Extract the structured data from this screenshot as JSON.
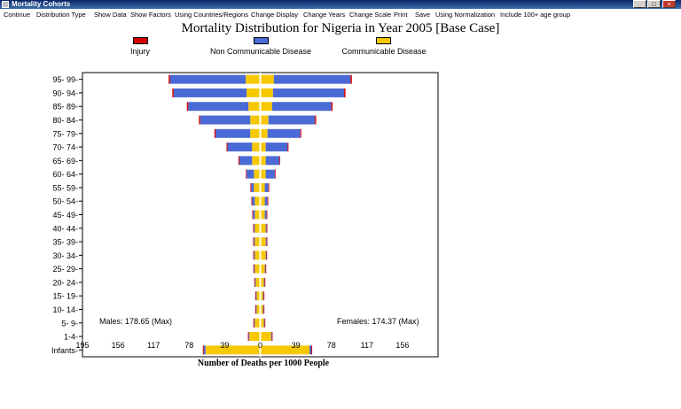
{
  "window": {
    "title": "Mortality Cohorts",
    "controls": [
      "_",
      "□",
      "×"
    ]
  },
  "menu": [
    "Continue",
    "Distribution Type",
    "Show Data",
    "Show Factors",
    "Using Countries/Regions",
    "Change Display",
    "Change Years",
    "Change Scale",
    "Print",
    "Save",
    "Using Normalization",
    "Include 100+ age group"
  ],
  "chart_data": {
    "type": "bar",
    "orientation": "population-pyramid",
    "title": "Mortality Distribution for Nigeria in Year  2005 [Base Case]",
    "xlabel": "Number of Deaths per 1000 People",
    "ylabel": "",
    "xlim": [
      -195,
      195
    ],
    "x_ticks_left": [
      "195",
      "156",
      "117",
      "78",
      "39"
    ],
    "x_tick_center": "0",
    "x_ticks_right": [
      "39",
      "78",
      "117",
      "156"
    ],
    "legend_position": "top",
    "legend": [
      {
        "name": "Injury",
        "color": "#d40000"
      },
      {
        "name": "Non Communicable Disease",
        "color": "#4a6ad6"
      },
      {
        "name": "Communicable Disease",
        "color": "#f7c800"
      }
    ],
    "categories": [
      "95- 99-",
      "90- 94-",
      "85- 89-",
      "80- 84-",
      "75- 79-",
      "70- 74-",
      "65- 69-",
      "60- 64-",
      "55- 59-",
      "50- 54-",
      "45- 49-",
      "40- 44-",
      "35- 39-",
      "30- 34-",
      "25- 29-",
      "20- 24-",
      "15- 19-",
      "10- 14-",
      "5- 9-",
      "1-4-",
      "Infants-"
    ],
    "males": {
      "injury": [
        1.5,
        1.5,
        1.5,
        1.3,
        1.3,
        1.0,
        1.0,
        0.8,
        0.8,
        0.7,
        0.7,
        0.7,
        0.7,
        0.7,
        0.7,
        0.7,
        0.5,
        0.3,
        0.8,
        0.3,
        1.0
      ],
      "noncommunicable": [
        83,
        80,
        66,
        55,
        38,
        27,
        14,
        8,
        3,
        3,
        2,
        1,
        1,
        1,
        0.5,
        0.3,
        0.3,
        0.3,
        0.4,
        0.3,
        2
      ],
      "communicable": [
        15,
        14,
        12,
        10,
        10,
        8,
        8,
        6,
        6,
        5,
        5,
        5,
        5,
        5,
        5,
        4,
        3,
        3,
        5,
        11,
        59
      ]
    },
    "females": {
      "injury": [
        1.5,
        1.5,
        1.3,
        1.3,
        1.0,
        1.0,
        0.8,
        0.8,
        0.7,
        0.7,
        0.5,
        0.5,
        0.5,
        0.5,
        0.5,
        0.5,
        0.3,
        0.3,
        0.5,
        0.3,
        1.0
      ],
      "noncommunicable": [
        84,
        78,
        65,
        51,
        36,
        24,
        15,
        10,
        4,
        3,
        2,
        1,
        1,
        0.5,
        0.5,
        0.3,
        0.3,
        0.3,
        0.3,
        0.3,
        2
      ],
      "communicable": [
        14,
        13,
        12,
        8,
        7,
        5,
        5,
        5,
        4,
        4,
        4,
        5,
        5,
        5,
        4,
        3,
        2,
        2,
        3,
        11,
        53
      ]
    },
    "annotations": {
      "males_max": "Males: 178.65 (Max)",
      "females_max": "Females: 174.37 (Max)"
    }
  }
}
